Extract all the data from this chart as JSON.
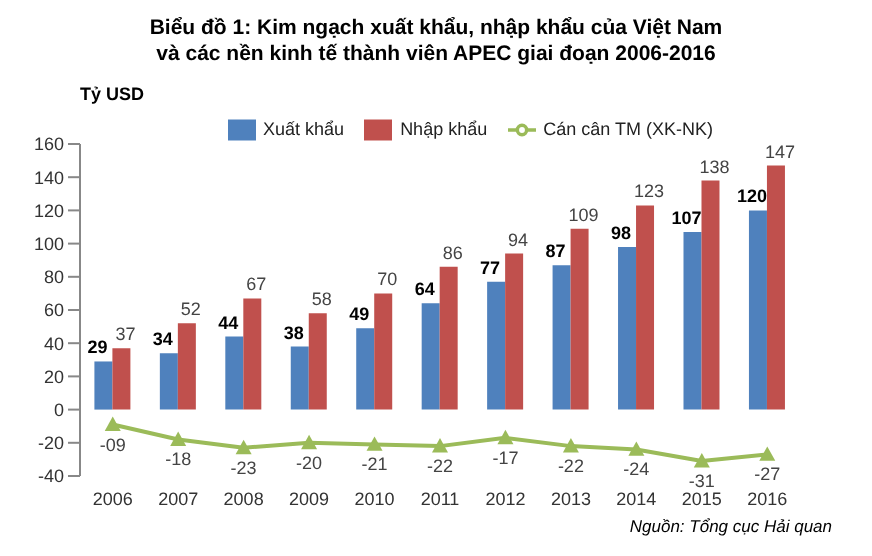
{
  "chart_data": {
    "type": "bar",
    "title": "Biểu đồ 1: Kim ngạch xuất khẩu, nhập khẩu của Việt Nam và các nền kinh tế thành viên APEC giai đoạn 2006-2016",
    "ylabel": "Tỷ USD",
    "categories": [
      "2006",
      "2007",
      "2008",
      "2009",
      "2010",
      "2011",
      "2012",
      "2013",
      "2014",
      "2015",
      "2016"
    ],
    "series": [
      {
        "name": "Xuất khẩu",
        "color": "#4f81bd",
        "values": [
          29,
          34,
          44,
          38,
          49,
          64,
          77,
          87,
          98,
          107,
          120
        ],
        "value_labels": [
          "29",
          "34",
          "44",
          "38",
          "49",
          "64",
          "77",
          "87",
          "98",
          "107",
          "120"
        ]
      },
      {
        "name": "Nhập khẩu",
        "color": "#c0504d",
        "values": [
          37,
          52,
          67,
          58,
          70,
          86,
          94,
          109,
          123,
          138,
          147
        ],
        "value_labels": [
          "37",
          "52",
          "67",
          "58",
          "70",
          "86",
          "94",
          "109",
          "123",
          "138",
          "147"
        ]
      },
      {
        "name": "Cán cân TM (XK-NK)",
        "type": "line",
        "color": "#9bbb59",
        "values": [
          -9,
          -18,
          -23,
          -20,
          -21,
          -22,
          -17,
          -22,
          -24,
          -31,
          -27
        ],
        "value_labels": [
          "-09",
          "-18",
          "-23",
          "-20",
          "-21",
          "-22",
          "-17",
          "-22",
          "-24",
          "-31",
          "-27"
        ]
      }
    ],
    "ylim": [
      -40,
      160
    ],
    "yticks": [
      -40,
      -20,
      0,
      20,
      40,
      60,
      80,
      100,
      120,
      140,
      160
    ],
    "grid": false,
    "legend": "top",
    "marker": "triangle",
    "line_style": "solid",
    "annotations": [
      "Nguồn: Tổng cục Hải quan"
    ]
  }
}
